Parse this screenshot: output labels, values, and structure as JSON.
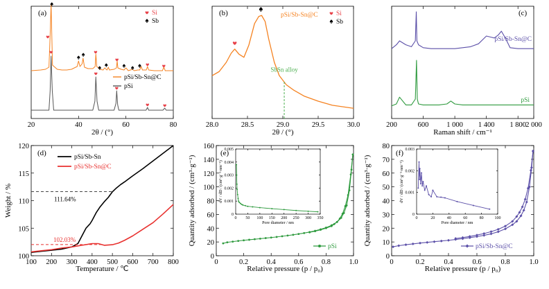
{
  "colors": {
    "orange": "#f58220",
    "black": "#000000",
    "gray": "#555555",
    "red": "#e8312f",
    "purple": "#5b4fa8",
    "green": "#2e9a3e",
    "heart": "#e8424a",
    "dashred": "#e8312f",
    "dashgreen": "#4caf50"
  },
  "chart_data": [
    {
      "id": "a",
      "panel_label": "(a)",
      "type": "line",
      "xlabel": "2θ / (°)",
      "ylabel": "",
      "xlim": [
        20,
        80
      ],
      "xticks": [
        "20",
        "40",
        "60",
        "80"
      ],
      "series": [
        {
          "name": "pSi/Sb-Sn@C",
          "color": "#f58220",
          "offset": 0.55,
          "x": [
            20,
            24,
            26,
            27.5,
            28.0,
            28.4,
            29,
            31,
            33,
            35,
            37,
            39.4,
            40,
            40.6,
            41.5,
            41.9,
            42.5,
            44,
            46,
            47.0,
            47.3,
            47.7,
            49,
            50.4,
            51,
            52,
            52.6,
            53,
            55,
            56.0,
            56.3,
            56.6,
            58,
            59.2,
            60,
            61,
            62.8,
            63.5,
            65,
            65.8,
            66.4,
            67,
            68.6,
            69.1,
            69.6,
            72,
            75.4,
            76.0,
            76.6,
            80
          ],
          "y": [
            0.04,
            0.05,
            0.06,
            0.09,
            0.55,
            1.0,
            0.12,
            0.06,
            0.05,
            0.05,
            0.06,
            0.1,
            0.18,
            0.1,
            0.14,
            0.22,
            0.09,
            0.07,
            0.07,
            0.1,
            0.28,
            0.1,
            0.06,
            0.05,
            0.08,
            0.05,
            0.09,
            0.05,
            0.06,
            0.08,
            0.18,
            0.08,
            0.06,
            0.05,
            0.08,
            0.04,
            0.06,
            0.04,
            0.05,
            0.05,
            0.1,
            0.05,
            0.05,
            0.1,
            0.05,
            0.04,
            0.04,
            0.09,
            0.04,
            0.04
          ]
        },
        {
          "name": "pSi",
          "color": "#555555",
          "offset": 0.0,
          "x": [
            20,
            27.5,
            28.0,
            28.4,
            28.9,
            29.5,
            46,
            46.9,
            47.3,
            47.8,
            48.5,
            55,
            55.8,
            56.1,
            56.5,
            57,
            68.5,
            69.1,
            69.6,
            75.6,
            76.4,
            77,
            80
          ],
          "y": [
            0.02,
            0.02,
            0.3,
            0.8,
            0.3,
            0.02,
            0.02,
            0.15,
            0.5,
            0.15,
            0.02,
            0.02,
            0.12,
            0.3,
            0.1,
            0.02,
            0.02,
            0.06,
            0.02,
            0.02,
            0.05,
            0.02,
            0.02
          ]
        }
      ],
      "markers": [
        {
          "type": "heart",
          "x": 27.0,
          "y": 1.08,
          "label": ""
        },
        {
          "type": "spade",
          "x": 28.7,
          "y": 1.55,
          "label": ""
        },
        {
          "type": "spade",
          "x": 40.0,
          "y": 0.78,
          "label": ""
        },
        {
          "type": "spade",
          "x": 42.0,
          "y": 0.82,
          "label": ""
        },
        {
          "type": "heart",
          "x": 47.2,
          "y": 0.86,
          "label": ""
        },
        {
          "type": "spade",
          "x": 48.9,
          "y": 0.63,
          "label": ""
        },
        {
          "type": "spade",
          "x": 51.7,
          "y": 0.67,
          "label": ""
        },
        {
          "type": "heart",
          "x": 56.2,
          "y": 0.75,
          "label": ""
        },
        {
          "type": "spade",
          "x": 59.2,
          "y": 0.66,
          "label": ""
        },
        {
          "type": "spade",
          "x": 62.8,
          "y": 0.63,
          "label": ""
        },
        {
          "type": "spade",
          "x": 65.8,
          "y": 0.66,
          "label": ""
        },
        {
          "type": "heart",
          "x": 69.1,
          "y": 0.68,
          "label": ""
        },
        {
          "type": "heart",
          "x": 76.0,
          "y": 0.66,
          "label": ""
        },
        {
          "type": "heart",
          "x": 28.4,
          "y": 0.86,
          "label": ""
        },
        {
          "type": "heart",
          "x": 47.3,
          "y": 0.55,
          "label": ""
        },
        {
          "type": "heart",
          "x": 56.1,
          "y": 0.34,
          "label": ""
        },
        {
          "type": "heart",
          "x": 69.1,
          "y": 0.1,
          "label": ""
        },
        {
          "type": "heart",
          "x": 76.4,
          "y": 0.09,
          "label": ""
        }
      ],
      "legend_markers": [
        {
          "type": "heart",
          "text": "Si"
        },
        {
          "type": "spade",
          "text": "Sb"
        }
      ],
      "legend_lines": [
        {
          "text": "pSi/Sb-Sn@C",
          "color": "#f58220"
        },
        {
          "text": "pSi",
          "color": "#555555"
        }
      ]
    },
    {
      "id": "b",
      "panel_label": "(b)",
      "type": "line",
      "xlabel": "2θ / (°)",
      "xlim": [
        28.0,
        30.0
      ],
      "ylim": [
        0,
        1.1
      ],
      "xticks": [
        "28.0",
        "28.5",
        "29.0",
        "29.5",
        "30.0"
      ],
      "title_in_plot": "pSi/Sb-Sn@C",
      "series": [
        {
          "name": "pSi/Sb-Sn@C",
          "color": "#f58220",
          "x": [
            28.0,
            28.1,
            28.2,
            28.27,
            28.32,
            28.38,
            28.45,
            28.52,
            28.6,
            28.66,
            28.7,
            28.75,
            28.8,
            28.88,
            28.95,
            29.05,
            29.15,
            29.3,
            29.5,
            29.7,
            30.0
          ],
          "y": [
            0.42,
            0.46,
            0.55,
            0.64,
            0.68,
            0.63,
            0.6,
            0.72,
            0.93,
            1.0,
            1.01,
            0.95,
            0.78,
            0.55,
            0.42,
            0.33,
            0.28,
            0.22,
            0.17,
            0.13,
            0.1
          ]
        }
      ],
      "markers": [
        {
          "type": "heart",
          "x": 28.32,
          "y": 0.74
        },
        {
          "type": "spade",
          "x": 28.69,
          "y": 1.07
        }
      ],
      "legend_markers": [
        {
          "type": "heart",
          "text": "Si"
        },
        {
          "type": "spade",
          "text": "Sb"
        }
      ],
      "annotation": {
        "text": "SbSn alloy",
        "x": 29.02
      }
    },
    {
      "id": "c",
      "panel_label": "(c)",
      "type": "line",
      "xlabel": "Raman shift / cm⁻¹",
      "xlim": [
        200,
        2000
      ],
      "xticks": [
        "200",
        "600",
        "1 000",
        "1 400",
        "1 800",
        "2 000"
      ],
      "xtick_vals": [
        200,
        600,
        1000,
        1400,
        1800,
        2000
      ],
      "series": [
        {
          "name": "pSi/Sb-Sn@C",
          "color": "#5b4fa8",
          "x": [
            200,
            260,
            300,
            380,
            450,
            500,
            512,
            520,
            540,
            600,
            700,
            800,
            900,
            1000,
            1100,
            1200,
            1300,
            1350,
            1400,
            1450,
            1500,
            1550,
            1590,
            1640,
            1700,
            1800,
            1900,
            2000
          ],
          "y": [
            0.62,
            0.66,
            0.7,
            0.66,
            0.64,
            0.7,
            1.0,
            0.7,
            0.66,
            0.63,
            0.62,
            0.62,
            0.62,
            0.62,
            0.63,
            0.64,
            0.67,
            0.71,
            0.75,
            0.74,
            0.73,
            0.76,
            0.8,
            0.73,
            0.63,
            0.62,
            0.62,
            0.62
          ]
        },
        {
          "name": "pSi",
          "color": "#2e9a3e",
          "x": [
            200,
            260,
            300,
            380,
            450,
            500,
            515,
            525,
            540,
            600,
            700,
            800,
            900,
            950,
            1000,
            1100,
            1300,
            1500,
            1700,
            2000
          ],
          "y": [
            0.03,
            0.05,
            0.12,
            0.04,
            0.04,
            0.1,
            0.5,
            0.1,
            0.05,
            0.04,
            0.04,
            0.04,
            0.05,
            0.08,
            0.05,
            0.04,
            0.04,
            0.04,
            0.04,
            0.04
          ]
        }
      ],
      "series_labels": [
        {
          "text": "pSi/Sb-Sn@C",
          "color": "#5b4fa8"
        },
        {
          "text": "pSi",
          "color": "#2e9a3e"
        }
      ]
    },
    {
      "id": "d",
      "panel_label": "(d)",
      "type": "line",
      "xlabel": "Temperature / ℃",
      "ylabel": "Weight / %",
      "xlim": [
        100,
        800
      ],
      "ylim": [
        100,
        120
      ],
      "xticks": [
        "100",
        "200",
        "300",
        "400",
        "500",
        "600",
        "700",
        "800"
      ],
      "yticks": [
        "100",
        "105",
        "110",
        "115",
        "120"
      ],
      "series": [
        {
          "name": "pSi/Sb-Sn",
          "color": "#000000",
          "x": [
            100,
            150,
            200,
            250,
            300,
            330,
            350,
            370,
            390,
            400,
            420,
            440,
            460,
            480,
            500,
            520,
            540,
            560,
            600,
            650,
            700,
            750,
            800
          ],
          "y": [
            100.6,
            100.8,
            101.0,
            101.2,
            101.6,
            102.2,
            103.6,
            105.0,
            105.8,
            106.4,
            107.8,
            108.9,
            109.8,
            110.6,
            111.6,
            112.3,
            112.9,
            113.4,
            114.5,
            115.8,
            117.2,
            118.6,
            120.0
          ]
        },
        {
          "name": "pSi/Sb-Sn@C",
          "color": "#e8312f",
          "x": [
            100,
            150,
            200,
            250,
            300,
            350,
            400,
            430,
            460,
            500,
            530,
            560,
            600,
            650,
            700,
            750,
            800
          ],
          "y": [
            100.7,
            100.9,
            101.1,
            101.4,
            101.6,
            101.9,
            102.2,
            102.2,
            101.9,
            102.0,
            102.3,
            102.8,
            103.6,
            104.8,
            106.0,
            107.6,
            109.3
          ]
        }
      ],
      "annotations": [
        {
          "text": "111.64%",
          "y": 111.64,
          "color": "#000000"
        },
        {
          "text": "102.03%",
          "y": 102.03,
          "color": "#e8312f"
        }
      ]
    },
    {
      "id": "e",
      "panel_label": "(e)",
      "type": "line",
      "xlabel": "Relative pressure (p / p₀)",
      "ylabel": "Quantity adsorbed / (cm³·g⁻¹)",
      "xlim": [
        0,
        1.0
      ],
      "ylim": [
        0,
        160
      ],
      "xticks": [
        "0",
        "0.2",
        "0.4",
        "0.6",
        "0.8",
        "1.0"
      ],
      "yticks": [
        "0",
        "20",
        "40",
        "60",
        "80",
        "100",
        "120",
        "140",
        "160"
      ],
      "series": [
        {
          "name": "pSi",
          "color": "#2e9a3e",
          "x": [
            0.05,
            0.08,
            0.12,
            0.16,
            0.2,
            0.24,
            0.28,
            0.32,
            0.36,
            0.4,
            0.44,
            0.48,
            0.52,
            0.56,
            0.6,
            0.64,
            0.68,
            0.72,
            0.76,
            0.8,
            0.84,
            0.88,
            0.91,
            0.93,
            0.95,
            0.97,
            0.985,
            0.995
          ],
          "y": [
            18,
            19.5,
            20.5,
            21.5,
            22.4,
            23.2,
            24.0,
            24.8,
            25.6,
            26.4,
            27.3,
            28.3,
            29.3,
            30.4,
            31.6,
            32.9,
            34.4,
            36.2,
            38.3,
            40.8,
            44.2,
            49,
            55,
            62,
            73,
            95,
            125,
            147
          ]
        },
        {
          "name": "pSi-desorption",
          "color": "#2e9a3e",
          "x": [
            0.995,
            0.98,
            0.96,
            0.94,
            0.92,
            0.9,
            0.88,
            0.86,
            0.84,
            0.8,
            0.76,
            0.72,
            0.68
          ],
          "y": [
            147,
            118,
            88,
            72,
            61,
            54,
            49,
            46,
            43,
            40,
            37.6,
            35.6,
            34.0
          ]
        }
      ],
      "legend": {
        "text": "pSi"
      },
      "inset": {
        "xlabel": "Pore diameter / nm",
        "ylabel": "dV / dD / (cm³·g⁻¹·nm⁻¹)",
        "xlim": [
          0,
          350
        ],
        "ylim": [
          0,
          0.005
        ],
        "xticks": [
          "0",
          "50",
          "100",
          "150",
          "200",
          "250",
          "300",
          "350"
        ],
        "yticks": [
          "0",
          "0.001",
          "0.002",
          "0.003",
          "0.004",
          "0.005"
        ],
        "x": [
          3,
          4,
          5,
          6,
          8,
          10,
          12,
          15,
          20,
          25,
          30,
          40,
          50,
          70,
          100,
          150,
          200,
          250,
          300,
          340
        ],
        "y": [
          0.0038,
          0.003,
          0.0023,
          0.0019,
          0.0015,
          0.0012,
          0.001,
          0.0009,
          0.00082,
          0.00075,
          0.0007,
          0.00065,
          0.0006,
          0.00056,
          0.0005,
          0.00042,
          0.00035,
          0.00028,
          0.00022,
          0.00018
        ]
      }
    },
    {
      "id": "f",
      "panel_label": "(f)",
      "type": "line",
      "xlabel": "Relative pressure (p / p₀)",
      "ylabel": "Quantity adsorbed / (cm³·g⁻¹)",
      "xlim": [
        0,
        1.0
      ],
      "ylim": [
        0,
        80
      ],
      "xticks": [
        "0",
        "0.2",
        "0.4",
        "0.6",
        "0.8",
        "1.0"
      ],
      "yticks": [
        "0",
        "10",
        "20",
        "30",
        "40",
        "50",
        "60",
        "70",
        "80"
      ],
      "series": [
        {
          "name": "pSi/Sb-Sn@C",
          "color": "#5b4fa8",
          "x": [
            0.01,
            0.05,
            0.1,
            0.15,
            0.2,
            0.25,
            0.3,
            0.35,
            0.4,
            0.45,
            0.5,
            0.55,
            0.6,
            0.65,
            0.7,
            0.75,
            0.8,
            0.85,
            0.88,
            0.91,
            0.93,
            0.95,
            0.97,
            0.985,
            0.995
          ],
          "y": [
            6.5,
            7.3,
            8.0,
            8.6,
            9.2,
            9.7,
            10.2,
            10.7,
            11.2,
            11.8,
            12.4,
            13.1,
            13.9,
            14.8,
            15.9,
            17.4,
            19.5,
            22.5,
            25.0,
            29,
            33,
            39,
            50,
            64,
            76
          ]
        },
        {
          "name": "pSi/Sb-Sn@C-desorption",
          "color": "#5b4fa8",
          "x": [
            0.995,
            0.98,
            0.96,
            0.94,
            0.92,
            0.9,
            0.88,
            0.85,
            0.8,
            0.75,
            0.7,
            0.65,
            0.6,
            0.55,
            0.5,
            0.45
          ],
          "y": [
            76,
            62,
            49,
            41,
            35.5,
            31.5,
            28.5,
            25,
            21.5,
            19.2,
            17.5,
            16.1,
            15.0,
            14.0,
            13.2,
            12.5
          ]
        }
      ],
      "legend": {
        "text": "pSi/Sb-Sn@C"
      },
      "inset": {
        "xlabel": "Pore diameter / nm",
        "ylabel": "dV / dD / (cm³·g⁻¹·nm⁻¹)",
        "xlim": [
          0,
          100
        ],
        "ylim": [
          0,
          0.003
        ],
        "xticks": [
          "0",
          "20",
          "40",
          "60",
          "80",
          "100"
        ],
        "yticks": [
          "0",
          "0.001",
          "0.002",
          "0.003"
        ],
        "x": [
          2,
          3,
          3.5,
          4,
          5,
          6,
          7,
          8,
          10,
          12,
          15,
          18,
          20,
          25,
          30,
          35,
          50,
          70,
          90
        ],
        "y": [
          0.0012,
          0.0024,
          0.0016,
          0.0021,
          0.0014,
          0.0019,
          0.0013,
          0.0015,
          0.0011,
          0.0013,
          0.0009,
          0.0008,
          0.0011,
          0.0008,
          0.00078,
          0.00075,
          0.00058,
          0.0004,
          0.00023
        ]
      }
    }
  ]
}
